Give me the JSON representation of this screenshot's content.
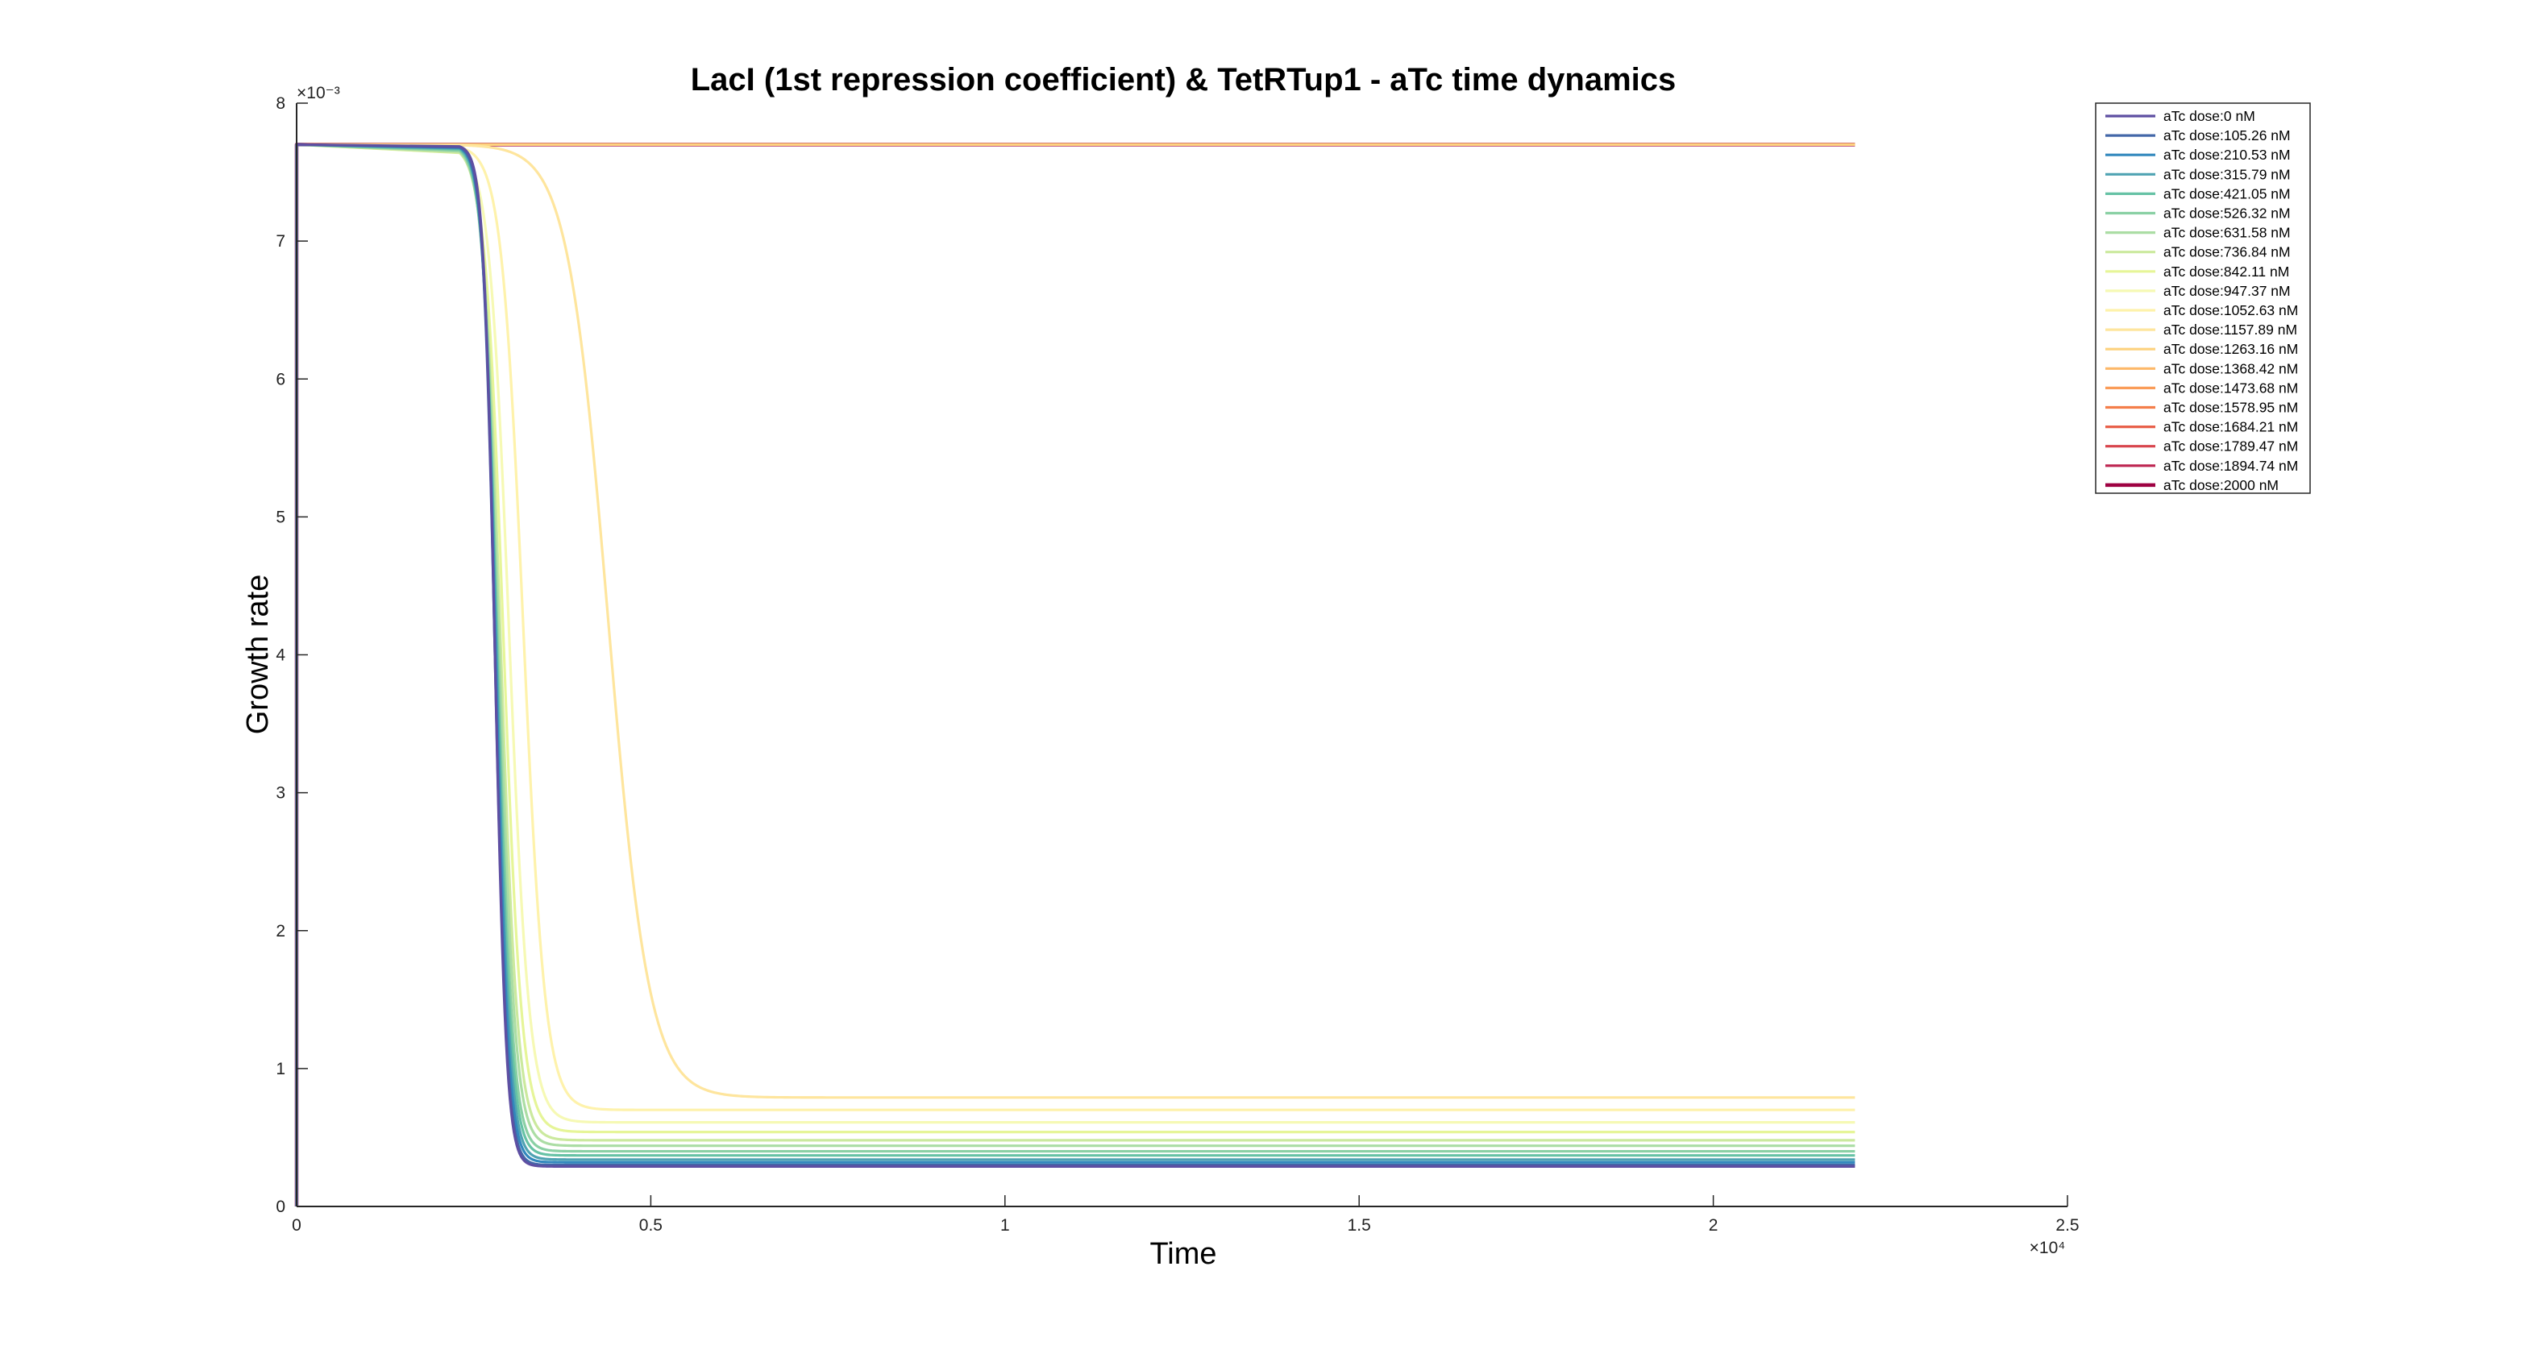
{
  "chart_data": {
    "type": "line",
    "title": "LacI (1st repression coefficient) & TetRTup1 - aTc time dynamics",
    "xlabel": "Time",
    "ylabel": "Growth rate",
    "xlim": [
      0,
      25000
    ],
    "ylim": [
      0,
      0.008
    ],
    "x_ticks": [
      "0",
      "0.5",
      "1",
      "1.5",
      "2",
      "2.5"
    ],
    "x_exponent": "×10⁴",
    "y_ticks": [
      "0",
      "1",
      "2",
      "3",
      "4",
      "5",
      "6",
      "7",
      "8"
    ],
    "y_exponent": "×10⁻³",
    "grid": false,
    "legend_position": "outside-top-right",
    "x_end": 22000,
    "series": [
      {
        "name": "aTc dose:0 nM",
        "color": "#5e4fa2",
        "initial": 0.0077,
        "drop_time": 2800,
        "final": 0.00029
      },
      {
        "name": "aTc dose:105.26 nM",
        "color": "#4367a8",
        "initial": 0.0077,
        "drop_time": 2800,
        "final": 0.0003
      },
      {
        "name": "aTc dose:210.53 nM",
        "color": "#3288bd",
        "initial": 0.0077,
        "drop_time": 2810,
        "final": 0.00032
      },
      {
        "name": "aTc dose:315.79 nM",
        "color": "#4fa3b2",
        "initial": 0.0077,
        "drop_time": 2820,
        "final": 0.00034
      },
      {
        "name": "aTc dose:421.05 nM",
        "color": "#66c2a5",
        "initial": 0.0077,
        "drop_time": 2830,
        "final": 0.00037
      },
      {
        "name": "aTc dose:526.32 nM",
        "color": "#8ad0a4",
        "initial": 0.0077,
        "drop_time": 2840,
        "final": 0.0004
      },
      {
        "name": "aTc dose:631.58 nM",
        "color": "#abdda4",
        "initial": 0.0077,
        "drop_time": 2860,
        "final": 0.00044
      },
      {
        "name": "aTc dose:736.84 nM",
        "color": "#cbe99e",
        "initial": 0.0077,
        "drop_time": 2880,
        "final": 0.00048
      },
      {
        "name": "aTc dose:842.11 nM",
        "color": "#e6f598",
        "initial": 0.0077,
        "drop_time": 2920,
        "final": 0.00054
      },
      {
        "name": "aTc dose:947.37 nM",
        "color": "#f6f9b4",
        "initial": 0.0077,
        "drop_time": 3000,
        "final": 0.00061
      },
      {
        "name": "aTc dose:1052.63 nM",
        "color": "#fef2ab",
        "initial": 0.0077,
        "drop_time": 3200,
        "final": 0.0007
      },
      {
        "name": "aTc dose:1157.89 nM",
        "color": "#fee59d",
        "initial": 0.0077,
        "drop_time": 4400,
        "final": 0.00079
      },
      {
        "name": "aTc dose:1263.16 nM",
        "color": "#fdd27f",
        "initial": 0.0077,
        "drop_time": null,
        "final": 0.0077
      },
      {
        "name": "aTc dose:1368.42 nM",
        "color": "#fdb869",
        "initial": 0.0077,
        "drop_time": null,
        "final": 0.0077
      },
      {
        "name": "aTc dose:1473.68 nM",
        "color": "#fa9c58",
        "initial": 0.0077,
        "drop_time": null,
        "final": 0.0077
      },
      {
        "name": "aTc dose:1578.95 nM",
        "color": "#f47e4a",
        "initial": 0.0077,
        "drop_time": null,
        "final": 0.0077
      },
      {
        "name": "aTc dose:1684.21 nM",
        "color": "#e8604a",
        "initial": 0.0077,
        "drop_time": null,
        "final": 0.0077
      },
      {
        "name": "aTc dose:1789.47 nM",
        "color": "#d8454d",
        "initial": 0.0077,
        "drop_time": null,
        "final": 0.0077
      },
      {
        "name": "aTc dose:1894.74 nM",
        "color": "#bd2450",
        "initial": 0.0077,
        "drop_time": null,
        "final": 0.0077
      },
      {
        "name": "aTc dose:2000 nM",
        "color": "#9e0142",
        "initial": 0.0077,
        "drop_time": null,
        "final": 0.0077
      }
    ]
  }
}
